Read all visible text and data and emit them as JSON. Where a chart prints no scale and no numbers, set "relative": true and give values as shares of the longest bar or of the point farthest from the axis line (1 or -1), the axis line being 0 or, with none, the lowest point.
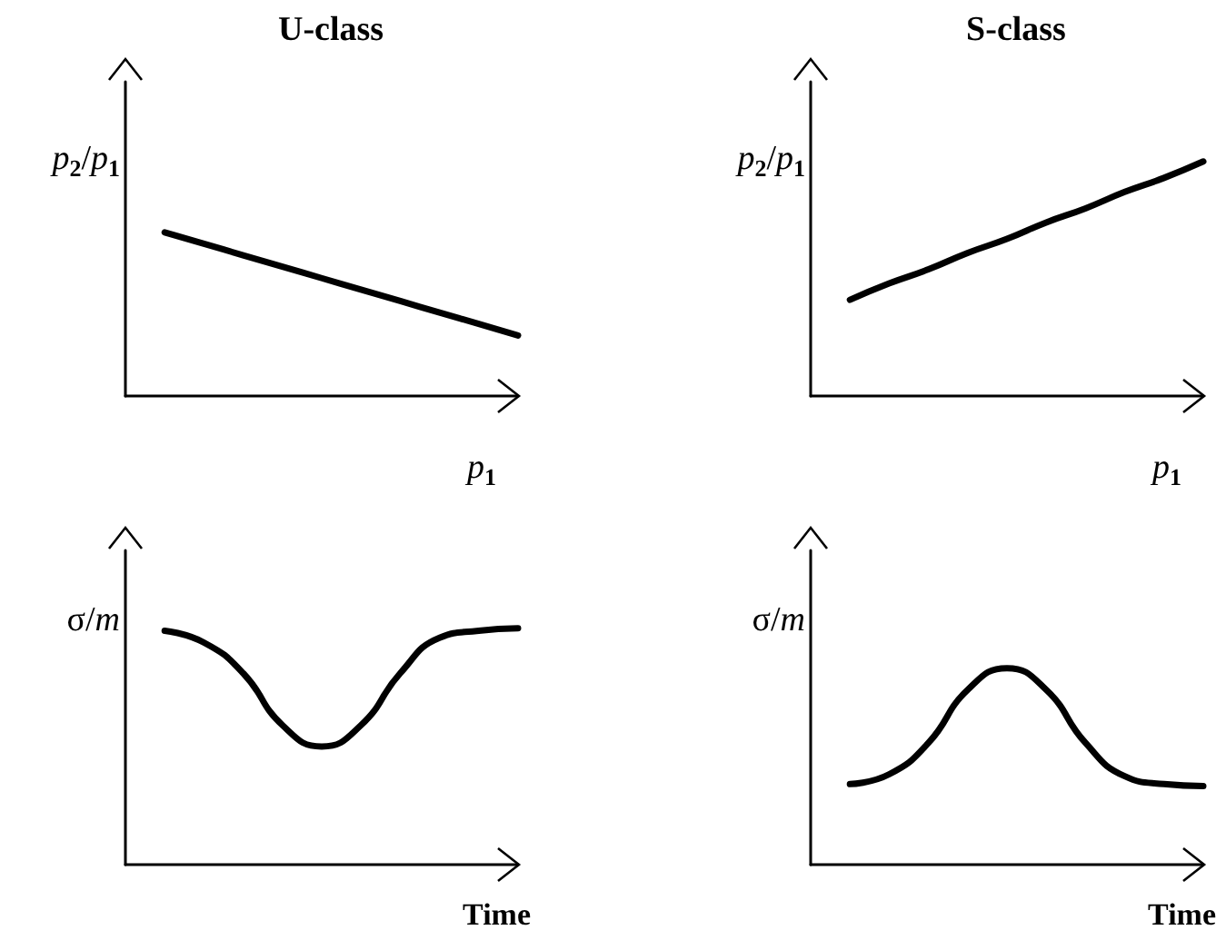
{
  "chart_data": [
    {
      "type": "line",
      "title": "U-class",
      "ylabel": "p$_{2}$/p$_{1}$",
      "xlabel": "p$_{1}$",
      "relative": true,
      "tick_labels": false,
      "marker": "none",
      "line_style": "solid",
      "categories": [
        null,
        null,
        null,
        null,
        null,
        null,
        null,
        null,
        null,
        null,
        null
      ],
      "series": [
        {
          "color": "#000000",
          "values": [
            null,
            1,
            0.93,
            0.86,
            0.79,
            0.72,
            0.65,
            0.58,
            0.51,
            0.44,
            0.37
          ]
        }
      ]
    },
    {
      "type": "line",
      "title": "S-class",
      "ylabel": "p$_{2}$/p$_{1}$",
      "xlabel": "p$_{1}$",
      "relative": true,
      "tick_labels": false,
      "marker": "none",
      "line_style": "solid",
      "categories": [
        null,
        null,
        null,
        null,
        null,
        null,
        null,
        null,
        null,
        null,
        null
      ],
      "series": [
        {
          "color": "#000000",
          "values": [
            null,
            0.41,
            0.48,
            0.54,
            0.61,
            0.67,
            0.74,
            0.8,
            0.87,
            0.93,
            1
          ]
        }
      ]
    },
    {
      "type": "line",
      "ylabel": "σ/m",
      "xlabel": "Time",
      "relative": true,
      "tick_labels": false,
      "marker": "none",
      "line_style": "solid",
      "categories": [
        null,
        null,
        null,
        null,
        null,
        null,
        null,
        null,
        null,
        null,
        null
      ],
      "series": [
        {
          "color": "#000000",
          "values": [
            null,
            0.99,
            0.94,
            0.81,
            0.59,
            0.5,
            0.59,
            0.81,
            0.96,
            0.99,
            1
          ]
        }
      ]
    },
    {
      "type": "line",
      "ylabel": "σ/m",
      "xlabel": "Time",
      "relative": true,
      "tick_labels": false,
      "marker": "none",
      "line_style": "solid",
      "categories": [
        null,
        null,
        null,
        null,
        null,
        null,
        null,
        null,
        null,
        null,
        null
      ],
      "series": [
        {
          "color": "#000000",
          "values": [
            null,
            0.41,
            0.46,
            0.62,
            0.89,
            1,
            0.89,
            0.62,
            0.45,
            0.41,
            0.4
          ]
        }
      ]
    }
  ]
}
